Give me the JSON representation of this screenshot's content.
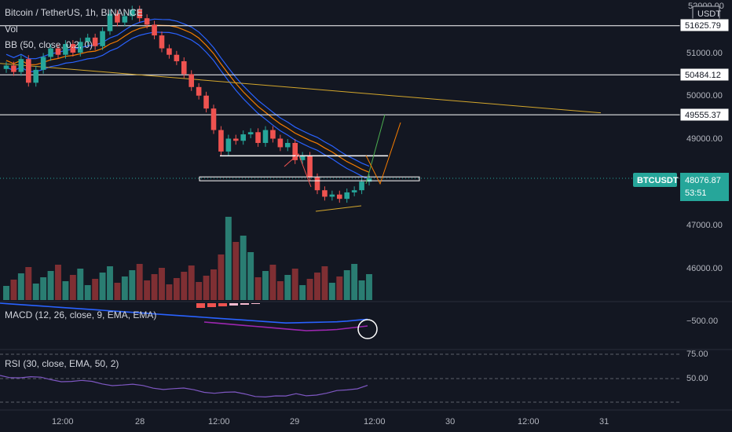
{
  "header": {
    "symbol_line": "Bitcoin / TetherUS, 1h, BINANCE",
    "vol_label": "Vol",
    "bb_label": "BB (50, close, 0.2, 0)",
    "currency": "USDT"
  },
  "colors": {
    "background": "#131722",
    "grid": "#1f2430",
    "axis_text": "#b2b5be",
    "up": "#26a69a",
    "down": "#ef5350",
    "vol_up": "#2a7d72",
    "vol_down": "#7f2f33",
    "bb_blue": "#2962ff",
    "bb_orange": "#f57c00",
    "trend_yellow": "#d4a72c",
    "macd_blue": "#2962ff",
    "macd_signal": "#9c27b0",
    "rsi_line": "#7e57c2",
    "price_tag": "#26a69a"
  },
  "price_axis": {
    "ticks": [
      "51000.00",
      "50000.00",
      "49000.00",
      "47000.00",
      "46000.00"
    ],
    "levels": [
      {
        "label": "51625.79",
        "price": 51625.79
      },
      {
        "label": "50484.12",
        "price": 50484.12
      },
      {
        "label": "49555.37",
        "price": 49555.37
      }
    ],
    "top_partial_label": "52000.00",
    "current": {
      "symbol": "BTCUSDT",
      "price": "48076.87",
      "countdown": "53:51"
    }
  },
  "time_axis": {
    "ticks": [
      "12:00",
      "28",
      "12:00",
      "29",
      "12:00",
      "30",
      "12:00",
      "31"
    ]
  },
  "macd": {
    "label": "MACD (12, 26, close, 9, EMA, EMA)",
    "tick": "−500.00"
  },
  "rsi": {
    "label": "RSI (30, close, EMA, 50, 2)",
    "ticks": [
      "75.00",
      "50.00"
    ]
  },
  "chart_data": {
    "type": "candlestick",
    "title": "Bitcoin / TetherUS, 1h, BINANCE",
    "timeframe": "1h",
    "exchange": "BINANCE",
    "price_range": [
      45500,
      52200
    ],
    "current_price": 48076.87,
    "horizontal_levels": [
      51625.79,
      50484.12,
      49555.37
    ],
    "support_zone": [
      48020,
      48110
    ],
    "resistance_mark": 48600,
    "candles_approx_close": [
      50700,
      50550,
      50850,
      50300,
      50600,
      50900,
      51100,
      50950,
      51200,
      51000,
      51250,
      51350,
      51150,
      51500,
      51900,
      51700,
      51850,
      52000,
      51800,
      51650,
      51400,
      51100,
      50950,
      50800,
      50500,
      50200,
      50000,
      49700,
      49200,
      48700,
      49000,
      48950,
      49100,
      49150,
      48900,
      49200,
      49000,
      48800,
      48900,
      48500,
      48600,
      48100,
      47800,
      47650,
      47700,
      47600,
      47750,
      47800,
      48000,
      48076.87
    ],
    "indicators": [
      "Vol",
      "BB (50, close, 0.2, 0)",
      "MACD (12, 26, close, 9, EMA, EMA)",
      "RSI (30, close, EMA, 50, 2)"
    ],
    "grid": false
  }
}
